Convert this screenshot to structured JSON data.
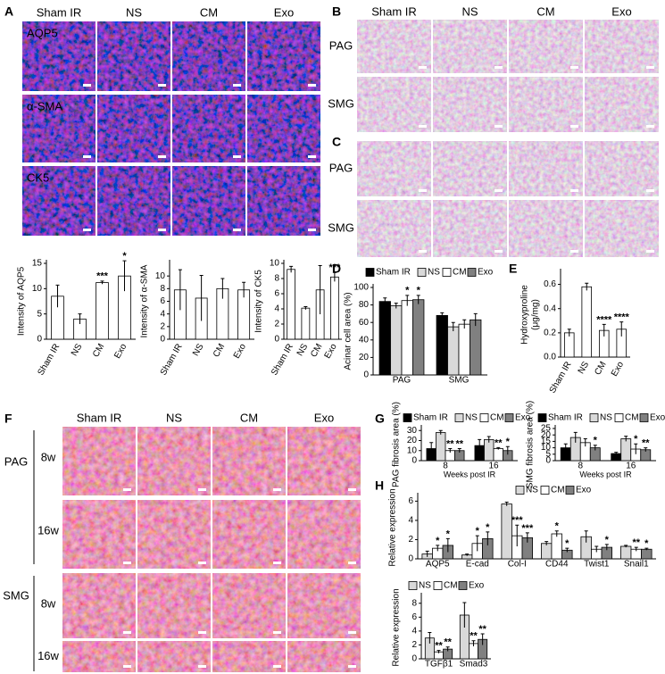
{
  "figure": {
    "letters": [
      "A",
      "B",
      "C",
      "D",
      "E",
      "F",
      "G",
      "H"
    ],
    "A": {
      "columns": [
        "Sham IR",
        "NS",
        "CM",
        "Exo"
      ],
      "rows": [
        "AQP5",
        "α-SMA",
        "CK5"
      ]
    },
    "B": {
      "columns": [
        "Sham IR",
        "NS",
        "CM",
        "Exo"
      ],
      "rows": [
        "PAG",
        "SMG"
      ]
    },
    "C": {
      "rows": [
        "PAG",
        "SMG"
      ]
    },
    "F": {
      "columns": [
        "Sham IR",
        "NS",
        "CM",
        "Exo"
      ],
      "groups": [
        "PAG",
        "SMG"
      ],
      "rows": [
        "8w",
        "16w",
        "8w",
        "16w"
      ]
    }
  },
  "chart_data": [
    {
      "type": "bar",
      "y_label": [
        "Intensity of AQP5"
      ],
      "categories": [
        "Sham IR",
        "NS",
        "CM",
        "Exo"
      ],
      "values": [
        8.5,
        4,
        11.2,
        12.5
      ],
      "errors": [
        2.2,
        1,
        0.3,
        3
      ],
      "significance": [
        null,
        null,
        "***",
        "*"
      ],
      "color": "#ffffff",
      "ylim": [
        0,
        15
      ],
      "yticks": [
        0,
        5,
        10,
        15
      ]
    },
    {
      "type": "bar",
      "y_label": [
        "Intensity of α-SMA"
      ],
      "categories": [
        "Sham IR",
        "NS",
        "CM",
        "Exo"
      ],
      "values": [
        7.8,
        6.5,
        8,
        7.8
      ],
      "errors": [
        3.2,
        3.6,
        1.6,
        1.2
      ],
      "significance": [
        null,
        null,
        null,
        null
      ],
      "color": "#ffffff",
      "ylim": [
        0,
        12
      ],
      "yticks": [
        0,
        2,
        4,
        6,
        8,
        10
      ]
    },
    {
      "type": "bar",
      "y_label": [
        "Intensity of CK5"
      ],
      "categories": [
        "Sham IR",
        "NS",
        "CM",
        "Exo"
      ],
      "values": [
        9.2,
        4.1,
        6.5,
        8.2
      ],
      "errors": [
        0.4,
        0.2,
        3.2,
        0.6
      ],
      "significance": [
        null,
        null,
        null,
        "***"
      ],
      "color": "#ffffff",
      "ylim": [
        0,
        10
      ],
      "yticks": [
        0,
        2,
        4,
        6,
        8,
        10
      ]
    },
    {
      "type": "bar",
      "y_label": [
        "Acinar cell area (%)"
      ],
      "categories": [
        "PAG",
        "SMG"
      ],
      "ylim": [
        0,
        100
      ],
      "yticks": [
        0,
        20,
        40,
        60,
        80,
        100
      ],
      "series": [
        {
          "name": "Sham IR",
          "color": "#000000",
          "values": [
            84,
            68
          ],
          "errors": [
            4,
            3
          ],
          "significance": [
            null,
            null
          ]
        },
        {
          "name": "NS",
          "color": "#d9d9d9",
          "values": [
            79,
            55
          ],
          "errors": [
            3,
            5
          ],
          "significance": [
            null,
            null
          ]
        },
        {
          "name": "CM",
          "color": "#ffffff",
          "values": [
            85,
            58
          ],
          "errors": [
            6,
            5
          ],
          "significance": [
            "*",
            null
          ]
        },
        {
          "name": "Exo",
          "color": "#808080",
          "values": [
            86,
            63
          ],
          "errors": [
            5,
            7
          ],
          "significance": [
            "*",
            null
          ]
        }
      ]
    },
    {
      "type": "bar",
      "y_label": [
        "Hydroxyproline",
        "(μg/mg)"
      ],
      "categories": [
        "Sham IR",
        "NS",
        "CM",
        "Exo"
      ],
      "values": [
        0.2,
        0.58,
        0.22,
        0.23
      ],
      "errors": [
        0.03,
        0.03,
        0.05,
        0.06
      ],
      "significance": [
        null,
        null,
        "****",
        "****"
      ],
      "color": "#ffffff",
      "ylim": [
        0,
        0.7
      ],
      "yticks": [
        {
          "value": 0,
          "label": "0.0"
        },
        0.2,
        0.4,
        0.6
      ]
    },
    {
      "type": "bar",
      "y_label": [
        "PAG fibrosis area (%)"
      ],
      "x_label": "Weeks post IR",
      "categories": [
        "8",
        "16"
      ],
      "ylim": [
        0,
        32
      ],
      "yticks": [
        0,
        10,
        20,
        30
      ],
      "series": [
        {
          "name": "Sham IR",
          "color": "#000000",
          "values": [
            12,
            15
          ],
          "errors": [
            6,
            6
          ],
          "significance": [
            null,
            null
          ]
        },
        {
          "name": "NS",
          "color": "#d9d9d9",
          "values": [
            28,
            21
          ],
          "errors": [
            2,
            3
          ],
          "significance": [
            null,
            null
          ]
        },
        {
          "name": "CM",
          "color": "#ffffff",
          "values": [
            10,
            12
          ],
          "errors": [
            2,
            1
          ],
          "significance": [
            "**",
            "**"
          ]
        },
        {
          "name": "Exo",
          "color": "#808080",
          "values": [
            10,
            10
          ],
          "errors": [
            2,
            4
          ],
          "significance": [
            "**",
            "*"
          ]
        }
      ]
    },
    {
      "type": "bar",
      "y_label": [
        "SMG fibrosis area (%)"
      ],
      "x_label": "Weeks post IR",
      "categories": [
        "8",
        "16"
      ],
      "ylim": [
        0,
        25
      ],
      "yticks": [
        0,
        5,
        10,
        15,
        20,
        25
      ],
      "series": [
        {
          "name": "Sham IR",
          "color": "#000000",
          "values": [
            10,
            5.5
          ],
          "errors": [
            3,
            1
          ],
          "significance": [
            null,
            null
          ]
        },
        {
          "name": "NS",
          "color": "#d9d9d9",
          "values": [
            18,
            17
          ],
          "errors": [
            4,
            2
          ],
          "significance": [
            null,
            null
          ]
        },
        {
          "name": "CM",
          "color": "#ffffff",
          "values": [
            14,
            9
          ],
          "errors": [
            3,
            4
          ],
          "significance": [
            null,
            "*"
          ]
        },
        {
          "name": "Exo",
          "color": "#808080",
          "values": [
            10,
            8.5
          ],
          "errors": [
            2,
            1.5
          ],
          "significance": [
            "*",
            "**"
          ]
        }
      ]
    },
    {
      "type": "bar",
      "y_label": [
        "Relative expression"
      ],
      "categories": [
        "AQP5",
        "E-cad",
        "Col-I",
        "CD44",
        "Twist1",
        "Snail1"
      ],
      "ylim": [
        0,
        6.5
      ],
      "yticks": [
        0,
        2,
        4,
        6
      ],
      "series": [
        {
          "name": "NS",
          "color": "#d9d9d9",
          "values": [
            0.5,
            0.4,
            5.7,
            1.6,
            2.3,
            1.3
          ],
          "errors": [
            0.3,
            0.1,
            0.2,
            0.2,
            0.6,
            0.1
          ],
          "significance": [
            null,
            null,
            null,
            null,
            null,
            null
          ]
        },
        {
          "name": "CM",
          "color": "#ffffff",
          "values": [
            1.1,
            1.6,
            2.4,
            2.6,
            1.0,
            1.0
          ],
          "errors": [
            0.3,
            0.8,
            1.1,
            0.3,
            0.3,
            0.2
          ],
          "significance": [
            "*",
            "*",
            "***",
            "*",
            null,
            "**"
          ]
        },
        {
          "name": "Exo",
          "color": "#808080",
          "values": [
            1.4,
            2.1,
            2.2,
            0.9,
            1.2,
            1.0
          ],
          "errors": [
            0.7,
            0.7,
            0.5,
            0.2,
            0.3,
            0.1
          ],
          "significance": [
            "*",
            "*",
            "***",
            "*",
            "*",
            "*"
          ]
        }
      ]
    },
    {
      "type": "bar",
      "y_label": [
        "Relative expression"
      ],
      "categories": [
        "TGFβ1",
        "Smad3"
      ],
      "ylim": [
        0,
        9
      ],
      "yticks": [
        0,
        2,
        4,
        6,
        8
      ],
      "series": [
        {
          "name": "NS",
          "color": "#d9d9d9",
          "values": [
            3,
            6.3
          ],
          "errors": [
            0.8,
            1.8
          ],
          "significance": [
            null,
            null
          ]
        },
        {
          "name": "CM",
          "color": "#ffffff",
          "values": [
            1,
            2.2
          ],
          "errors": [
            0.2,
            0.4
          ],
          "significance": [
            "**",
            "**"
          ]
        },
        {
          "name": "Exo",
          "color": "#808080",
          "values": [
            1.4,
            2.8
          ],
          "errors": [
            0.3,
            0.8
          ],
          "significance": [
            "**",
            "**"
          ]
        }
      ]
    }
  ]
}
